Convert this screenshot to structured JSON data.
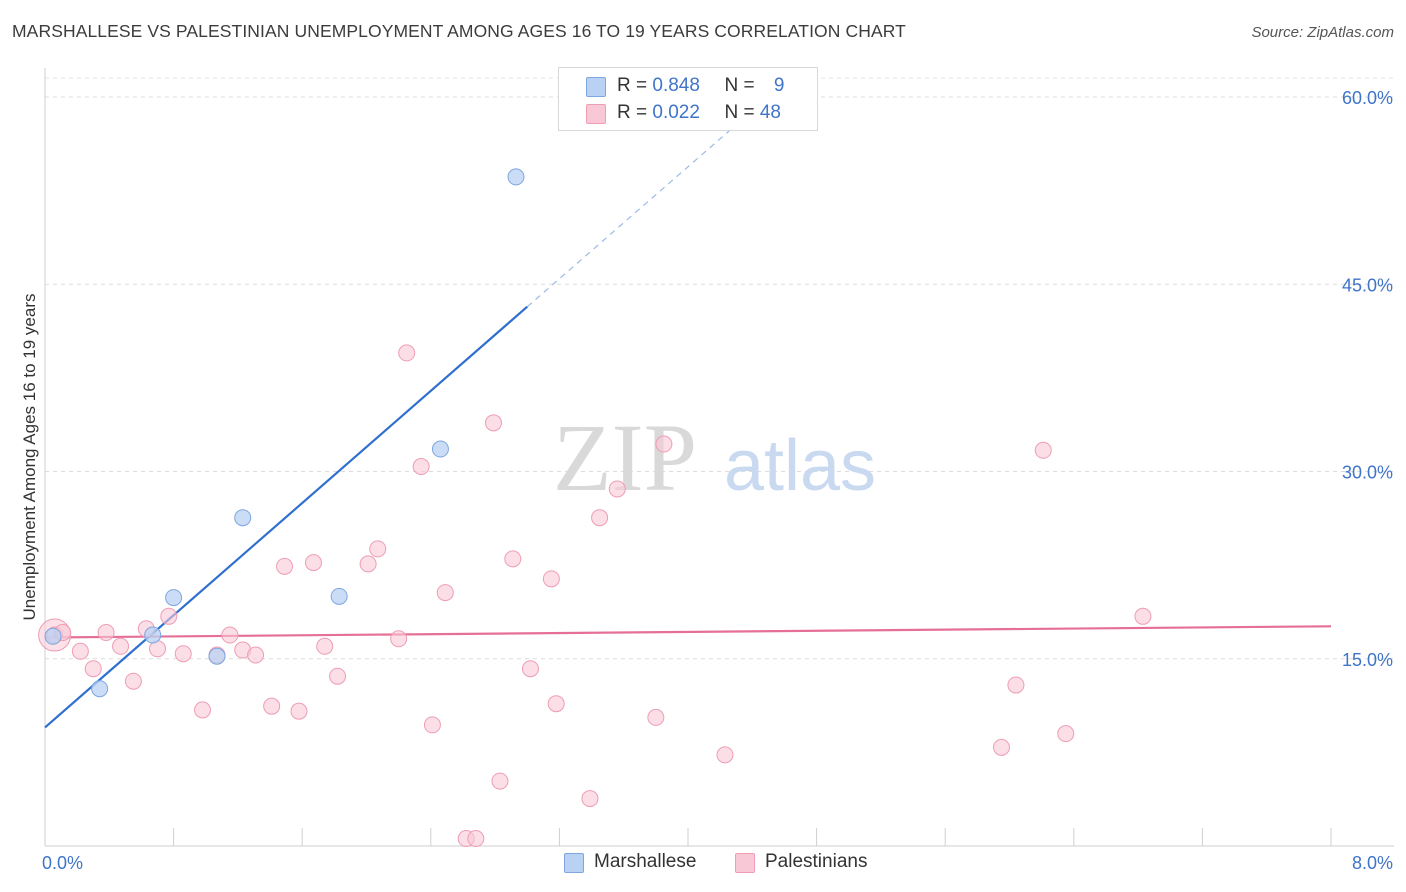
{
  "title": "MARSHALLESE VS PALESTINIAN UNEMPLOYMENT AMONG AGES 16 TO 19 YEARS CORRELATION CHART",
  "source": "Source: ZipAtlas.com",
  "watermark": {
    "zip": "ZIP",
    "atlas": "atlas"
  },
  "legend": {
    "rows": [
      {
        "r_label": "R = ",
        "r_value": "0.848",
        "n_label": "N = ",
        "n_value": "9"
      },
      {
        "r_label": "R = ",
        "r_value": "0.022",
        "n_label": "N = ",
        "n_value": "48"
      }
    ]
  },
  "bottom_legend": [
    {
      "label": "Marshallese"
    },
    {
      "label": "Palestinians"
    }
  ],
  "colors": {
    "marshallese_fill": "#b9d1f3",
    "marshallese_stroke": "#7ea6e0",
    "marshallese_line": "#2f6fce",
    "palestinian_fill": "#f9c8d6",
    "palestinian_stroke": "#ee9db5",
    "palestinian_line": "#e56f96",
    "axis_text": "#3f74c9"
  },
  "chart_data": {
    "type": "scatter",
    "title": "MARSHALLESE VS PALESTINIAN UNEMPLOYMENT AMONG AGES 16 TO 19 YEARS CORRELATION CHART",
    "xlabel": "",
    "ylabel": "Unemployment Among Ages 16 to 19 years",
    "xlim": [
      0,
      8
    ],
    "ylim": [
      0,
      60
    ],
    "x_tick_labels": [
      {
        "value": 0,
        "label": "0.0%"
      },
      {
        "value": 8,
        "label": "8.0%"
      }
    ],
    "y_tick_labels": [
      {
        "value": 15,
        "label": "15.0%"
      },
      {
        "value": 30,
        "label": "30.0%"
      },
      {
        "value": 45,
        "label": "45.0%"
      },
      {
        "value": 60,
        "label": "60.0%"
      }
    ],
    "grid": true,
    "legend_position": "top-center",
    "series": [
      {
        "name": "Marshallese",
        "r": 0.848,
        "n": 9,
        "points": [
          [
            0.05,
            16.8
          ],
          [
            0.34,
            12.6
          ],
          [
            0.67,
            16.9
          ],
          [
            0.8,
            19.9
          ],
          [
            1.07,
            15.2
          ],
          [
            1.23,
            26.3
          ],
          [
            1.83,
            20.0
          ],
          [
            2.46,
            31.8
          ],
          [
            2.93,
            53.6
          ]
        ],
        "trend": {
          "x": [
            0,
            3.0
          ],
          "y": [
            9.5,
            43.2
          ],
          "dash_x": [
            3.0,
            4.32
          ],
          "dash_y": [
            43.2,
            58.0
          ]
        }
      },
      {
        "name": "Palestinians",
        "r": 0.022,
        "n": 48,
        "points": [
          [
            0.06,
            16.9
          ],
          [
            0.11,
            17.1
          ],
          [
            0.22,
            15.6
          ],
          [
            0.3,
            14.2
          ],
          [
            0.38,
            17.1
          ],
          [
            0.47,
            16.0
          ],
          [
            0.55,
            13.2
          ],
          [
            0.63,
            17.4
          ],
          [
            0.7,
            15.8
          ],
          [
            0.77,
            18.4
          ],
          [
            0.86,
            15.4
          ],
          [
            0.98,
            10.9
          ],
          [
            1.07,
            15.3
          ],
          [
            1.15,
            16.9
          ],
          [
            1.23,
            15.7
          ],
          [
            1.31,
            15.3
          ],
          [
            1.41,
            11.2
          ],
          [
            1.49,
            22.4
          ],
          [
            1.58,
            10.8
          ],
          [
            1.67,
            22.7
          ],
          [
            1.74,
            16.0
          ],
          [
            1.82,
            13.6
          ],
          [
            2.01,
            22.6
          ],
          [
            2.07,
            23.8
          ],
          [
            2.2,
            16.6
          ],
          [
            2.25,
            39.5
          ],
          [
            2.34,
            30.4
          ],
          [
            2.41,
            9.7
          ],
          [
            2.49,
            20.3
          ],
          [
            2.62,
            0.6
          ],
          [
            2.68,
            0.6
          ],
          [
            2.79,
            33.9
          ],
          [
            2.83,
            5.2
          ],
          [
            2.91,
            23.0
          ],
          [
            3.02,
            14.2
          ],
          [
            3.15,
            21.4
          ],
          [
            3.18,
            11.4
          ],
          [
            3.39,
            3.8
          ],
          [
            3.45,
            26.3
          ],
          [
            3.56,
            28.6
          ],
          [
            3.8,
            10.3
          ],
          [
            3.85,
            32.2
          ],
          [
            4.23,
            7.3
          ],
          [
            5.95,
            7.9
          ],
          [
            6.04,
            12.9
          ],
          [
            6.21,
            31.7
          ],
          [
            6.35,
            9.0
          ],
          [
            6.83,
            18.4
          ]
        ],
        "trend": {
          "x": [
            0,
            8.0
          ],
          "y": [
            16.7,
            17.6
          ]
        }
      }
    ]
  }
}
